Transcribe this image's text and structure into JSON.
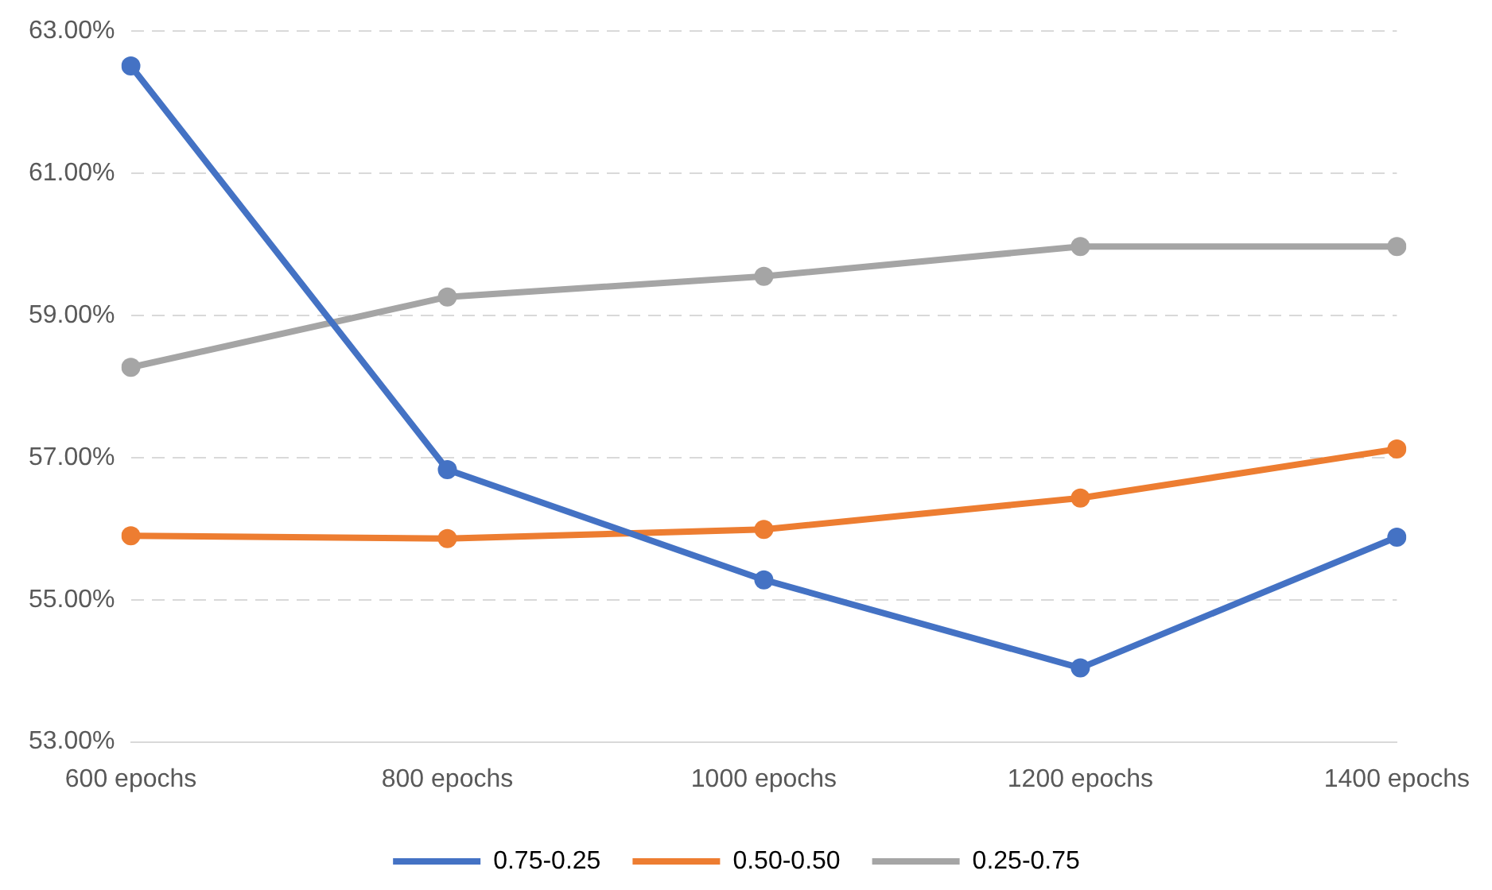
{
  "chart_data": {
    "type": "line",
    "categories": [
      "600 epochs",
      "800 epochs",
      "1000 epochs",
      "1200 epochs",
      "1400 epochs"
    ],
    "series": [
      {
        "name": "0.75-0.25",
        "color": "#4472c4",
        "values": [
          62.51,
          56.83,
          55.28,
          54.04,
          55.88
        ]
      },
      {
        "name": "0.50-0.50",
        "color": "#ed7d31",
        "values": [
          55.9,
          55.86,
          55.99,
          56.43,
          57.12
        ]
      },
      {
        "name": "0.25-0.75",
        "color": "#a5a5a5",
        "values": [
          58.27,
          59.26,
          59.55,
          59.97,
          59.97
        ]
      }
    ],
    "ylim": [
      53,
      63
    ],
    "yticks": [
      {
        "value": 53,
        "label": "53.00%"
      },
      {
        "value": 55,
        "label": "55.00%"
      },
      {
        "value": 57,
        "label": "57.00%"
      },
      {
        "value": 59,
        "label": "59.00%"
      },
      {
        "value": 61,
        "label": "61.00%"
      },
      {
        "value": 63,
        "label": "63.00%"
      }
    ],
    "grid": "y",
    "legend": "bottom",
    "marker": "circle",
    "line_style": "solid"
  }
}
